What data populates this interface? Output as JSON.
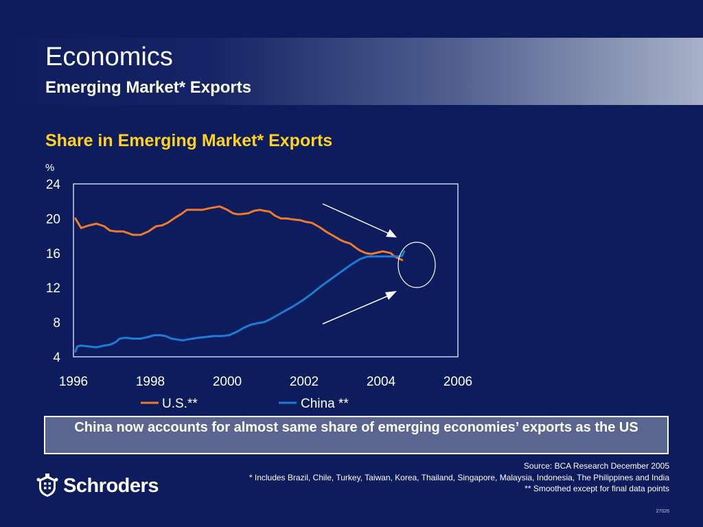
{
  "header": {
    "title": "Economics",
    "subtitle": "Emerging Market* Exports"
  },
  "chart_data": {
    "type": "line",
    "title": "Share in Emerging Market* Exports",
    "ylabel": "%",
    "xlabel": "",
    "xlim": [
      1996,
      2006
    ],
    "ylim": [
      4,
      24
    ],
    "xticks": [
      "1996",
      "1998",
      "2000",
      "2002",
      "2004",
      "2006"
    ],
    "yticks": [
      "24",
      "20",
      "16",
      "12",
      "8",
      "4"
    ],
    "grid": false,
    "legend": "bottom",
    "series": [
      {
        "name": "U.S.**",
        "color": "#f07a2a",
        "x": [
          1996.05,
          1996.2,
          1996.4,
          1996.6,
          1996.8,
          1996.95,
          1997.1,
          1997.3,
          1997.55,
          1997.75,
          1997.95,
          1998.15,
          1998.3,
          1998.45,
          1998.65,
          1998.8,
          1998.95,
          1999.2,
          1999.35,
          1999.55,
          1999.8,
          2000.0,
          2000.15,
          2000.25,
          2000.35,
          2000.55,
          2000.7,
          2000.85,
          2000.95,
          2001.1,
          2001.25,
          2001.4,
          2001.55,
          2001.7,
          2001.9,
          2002.05,
          2002.2,
          2002.4,
          2002.6,
          2002.8,
          2002.95,
          2003.05,
          2003.2,
          2003.35,
          2003.45,
          2003.6,
          2003.75,
          2003.95,
          2004.05,
          2004.25,
          2004.35,
          2004.45,
          2004.55
        ],
        "y": [
          20.0,
          18.9,
          19.2,
          19.4,
          19.1,
          18.6,
          18.5,
          18.5,
          18.1,
          18.1,
          18.5,
          19.1,
          19.2,
          19.5,
          20.1,
          20.5,
          21.0,
          21.0,
          21.0,
          21.2,
          21.4,
          21.0,
          20.6,
          20.5,
          20.5,
          20.6,
          20.9,
          21.0,
          20.9,
          20.8,
          20.3,
          20.0,
          20.0,
          19.9,
          19.8,
          19.6,
          19.5,
          19.0,
          18.4,
          17.9,
          17.5,
          17.3,
          17.1,
          16.6,
          16.3,
          16.0,
          15.9,
          16.1,
          16.2,
          16.0,
          15.6,
          15.4,
          15.2
        ]
      },
      {
        "name": "China **",
        "color": "#1d7cd8",
        "x": [
          1996.05,
          1996.1,
          1996.2,
          1996.4,
          1996.6,
          1996.8,
          1996.95,
          1997.1,
          1997.2,
          1997.35,
          1997.55,
          1997.75,
          1997.95,
          1998.1,
          1998.25,
          1998.4,
          1998.55,
          1998.7,
          1998.85,
          1998.95,
          1999.1,
          1999.25,
          1999.45,
          1999.65,
          1999.85,
          2000.05,
          2000.25,
          2000.45,
          2000.6,
          2000.8,
          2000.95,
          2001.1,
          2001.3,
          2001.5,
          2001.7,
          2001.95,
          2002.2,
          2002.45,
          2002.7,
          2002.95,
          2003.2,
          2003.45,
          2003.65,
          2003.85,
          2004.05,
          2004.3,
          2004.45,
          2004.55,
          2004.6
        ],
        "y": [
          4.6,
          5.2,
          5.3,
          5.2,
          5.1,
          5.3,
          5.4,
          5.7,
          6.1,
          6.2,
          6.1,
          6.1,
          6.3,
          6.5,
          6.5,
          6.4,
          6.1,
          6.0,
          5.9,
          6.0,
          6.1,
          6.2,
          6.3,
          6.4,
          6.4,
          6.5,
          6.9,
          7.4,
          7.7,
          7.9,
          8.0,
          8.3,
          8.8,
          9.3,
          9.8,
          10.5,
          11.3,
          12.2,
          13.0,
          13.8,
          14.6,
          15.3,
          15.6,
          15.6,
          15.6,
          15.6,
          15.6,
          15.7,
          16.2
        ]
      }
    ]
  },
  "callout": {
    "text": "China now accounts for almost same share of emerging economies’ exports as the US"
  },
  "footnotes": {
    "source": "Source: BCA Research  December 2005",
    "note1": "* Includes Brazil, Chile, Turkey, Taiwan, Korea, Thailand, Singapore, Malaysia, Indonesia, The Philippines and India",
    "note2": "** Smoothed except for final data points",
    "code": "27026"
  },
  "logo": {
    "text": "Schroders",
    "icon": "crest-icon"
  }
}
